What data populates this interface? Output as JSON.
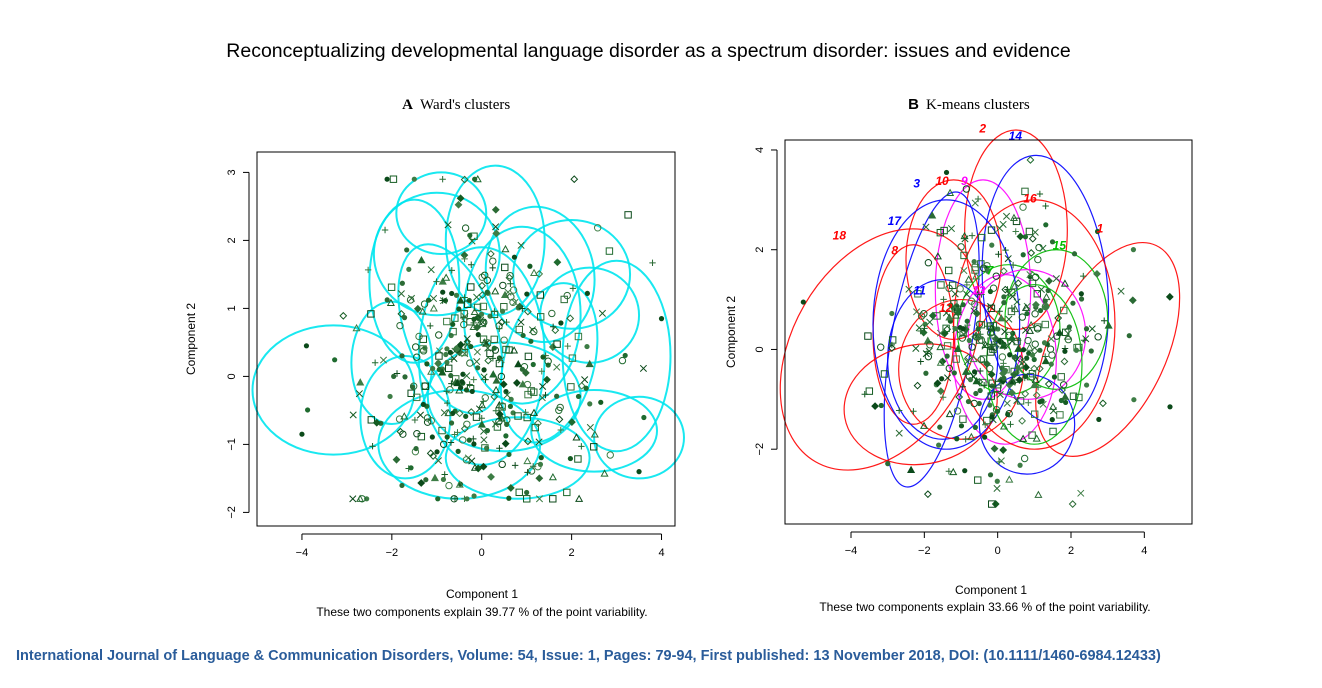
{
  "page": {
    "title": "Reconceptualizing developmental language disorder as a spectrum disorder: issues and evidence",
    "citation": "International Journal of Language & Communication Disorders, Volume: 54, Issue: 1, Pages: 79-94, First published: 13 November 2018, DOI: (10.1111/1460-6984.12433)",
    "citation_color": "#2a5c9a"
  },
  "chart_data": [
    {
      "type": "scatter",
      "panel_letter": "A",
      "title": "Ward's clusters",
      "xlabel": "Component 1",
      "ylabel": "Component 2",
      "caption": "These two components explain 39.77 % of the point variability.",
      "xlim": [
        -5,
        4.3
      ],
      "ylim": [
        -2.2,
        3.3
      ],
      "xticks": [
        -4,
        -2,
        0,
        2,
        4
      ],
      "yticks": [
        -2,
        -1,
        0,
        1,
        2,
        3
      ],
      "ellipse_color": "#00e5ee",
      "point_color": "#1f6b2f",
      "grid": false,
      "point_cloud": {
        "center": [
          0,
          0.2
        ],
        "spread": [
          1.3,
          1.1
        ],
        "count": 450
      },
      "named_points": [
        {
          "x": -3.9,
          "y": 0.45
        },
        {
          "x": -4.0,
          "y": -0.85
        },
        {
          "x": 4.0,
          "y": 0.85
        },
        {
          "x": 3.5,
          "y": -1.4
        }
      ],
      "ellipses": [
        {
          "cx": -3.3,
          "cy": -0.2,
          "rx": 1.8,
          "ry": 0.95,
          "angle": 0
        },
        {
          "cx": 0.3,
          "cy": 2.0,
          "rx": 1.1,
          "ry": 1.1,
          "angle": 0
        },
        {
          "cx": -1.0,
          "cy": 1.8,
          "rx": 1.4,
          "ry": 0.9,
          "angle": 0
        },
        {
          "cx": 1.3,
          "cy": 1.5,
          "rx": 1.2,
          "ry": 1.0,
          "angle": 10
        },
        {
          "cx": 3.0,
          "cy": 0.3,
          "rx": 1.2,
          "ry": 1.4,
          "angle": 0
        },
        {
          "cx": 3.5,
          "cy": -0.9,
          "rx": 1.0,
          "ry": 0.6,
          "angle": 0
        },
        {
          "cx": 2.5,
          "cy": -0.8,
          "rx": 1.4,
          "ry": 0.6,
          "angle": 0
        },
        {
          "cx": -0.5,
          "cy": -1.0,
          "rx": 1.8,
          "ry": 0.8,
          "angle": 0
        },
        {
          "cx": 0.8,
          "cy": -1.2,
          "rx": 1.6,
          "ry": 0.6,
          "angle": 0
        },
        {
          "cx": -1.7,
          "cy": -0.6,
          "rx": 1.0,
          "ry": 0.9,
          "angle": 0
        },
        {
          "cx": 0.0,
          "cy": 0.3,
          "rx": 1.4,
          "ry": 1.6,
          "angle": 0
        },
        {
          "cx": -0.7,
          "cy": 0.7,
          "rx": 1.0,
          "ry": 1.3,
          "angle": 20
        },
        {
          "cx": 1.5,
          "cy": 0.2,
          "rx": 1.0,
          "ry": 1.2,
          "angle": -15
        },
        {
          "cx": -1.5,
          "cy": 1.4,
          "rx": 1.0,
          "ry": 1.2,
          "angle": 0
        },
        {
          "cx": 2.0,
          "cy": 1.5,
          "rx": 1.3,
          "ry": 0.8,
          "angle": 0
        },
        {
          "cx": 0.5,
          "cy": -0.3,
          "rx": 1.7,
          "ry": 0.8,
          "angle": 0
        },
        {
          "cx": -0.9,
          "cy": 2.4,
          "rx": 1.0,
          "ry": 0.6,
          "angle": 0
        },
        {
          "cx": 2.4,
          "cy": 0.9,
          "rx": 1.1,
          "ry": 0.7,
          "angle": 0
        },
        {
          "cx": -2.0,
          "cy": 0.2,
          "rx": 0.9,
          "ry": 0.9,
          "angle": 0
        },
        {
          "cx": 0.9,
          "cy": 0.9,
          "rx": 1.3,
          "ry": 1.3,
          "angle": 0
        }
      ]
    },
    {
      "type": "scatter",
      "panel_letter": "B",
      "title": "K-means clusters",
      "xlabel": "Component 1",
      "ylabel": "Component 2",
      "caption": "These two components explain 33.66 % of the point variability.",
      "xlim": [
        -5.8,
        5.3
      ],
      "ylim": [
        -3.5,
        4.2
      ],
      "xticks": [
        -4,
        -2,
        0,
        2,
        4
      ],
      "yticks": [
        -2,
        0,
        2,
        4
      ],
      "point_color": "#1f6b2f",
      "grid": false,
      "point_cloud": {
        "center": [
          0,
          0.2
        ],
        "spread": [
          1.4,
          1.2
        ],
        "count": 450
      },
      "named_points": [
        {
          "x": -5.3,
          "y": 0.95
        },
        {
          "x": 4.7,
          "y": -1.15
        }
      ],
      "clusters": [
        {
          "label": "1",
          "color": "#ff0000",
          "label_x": 2.7,
          "label_y": 2.35,
          "cx": 3.0,
          "cy": 0.0,
          "rx": 1.6,
          "ry": 2.3,
          "angle": -25
        },
        {
          "label": "2",
          "color": "#ff0000",
          "label_x": -0.5,
          "label_y": 4.35,
          "cx": 0.5,
          "cy": 2.4,
          "rx": 1.4,
          "ry": 2.0,
          "angle": 0
        },
        {
          "label": "3",
          "color": "#0000ff",
          "label_x": -2.3,
          "label_y": 3.25,
          "cx": -1.8,
          "cy": 0.2,
          "rx": 1.1,
          "ry": 3.0,
          "angle": -10
        },
        {
          "label": "7",
          "color": "#00bb00",
          "label_x": -0.3,
          "label_y": 1.5,
          "cx": 0.3,
          "cy": 0.4,
          "rx": 1.4,
          "ry": 1.3,
          "angle": 0
        },
        {
          "label": "8",
          "color": "#ff0000",
          "label_x": -2.9,
          "label_y": 1.9,
          "cx": -2.3,
          "cy": 0.3,
          "rx": 1.1,
          "ry": 1.8,
          "angle": 0
        },
        {
          "label": "9",
          "color": "#ff00ff",
          "label_x": -1.0,
          "label_y": 3.3,
          "cx": -0.4,
          "cy": 1.2,
          "rx": 1.3,
          "ry": 2.2,
          "angle": 0
        },
        {
          "label": "10",
          "color": "#ff0000",
          "label_x": -1.7,
          "label_y": 3.3,
          "cx": -1.2,
          "cy": 1.8,
          "rx": 1.3,
          "ry": 1.6,
          "angle": 0
        },
        {
          "label": "11",
          "color": "#0000ff",
          "label_x": -2.3,
          "label_y": 1.1,
          "cx": -1.5,
          "cy": -0.2,
          "rx": 1.5,
          "ry": 1.6,
          "angle": 0
        },
        {
          "label": "12",
          "color": "#ff0000",
          "label_x": -1.6,
          "label_y": 0.75,
          "cx": -1.0,
          "cy": -0.4,
          "rx": 1.7,
          "ry": 1.4,
          "angle": 0
        },
        {
          "label": "13",
          "color": "#ff00ff",
          "label_x": -0.7,
          "label_y": 1.1,
          "cx": 0.2,
          "cy": -0.2,
          "rx": 1.4,
          "ry": 1.7,
          "angle": 0
        },
        {
          "label": "14",
          "color": "#0000ff",
          "label_x": 0.3,
          "label_y": 4.2,
          "cx": 1.3,
          "cy": 1.2,
          "rx": 1.7,
          "ry": 2.7,
          "angle": 5
        },
        {
          "label": "15",
          "color": "#00bb00",
          "label_x": 1.5,
          "label_y": 2.0,
          "cx": 1.6,
          "cy": 0.6,
          "rx": 1.4,
          "ry": 1.4,
          "angle": 0
        },
        {
          "label": "16",
          "color": "#ff0000",
          "label_x": 0.7,
          "label_y": 2.95,
          "cx": 1.0,
          "cy": 0.5,
          "rx": 2.2,
          "ry": 2.5,
          "angle": 0
        },
        {
          "label": "17",
          "color": "#0000ff",
          "label_x": -3.0,
          "label_y": 2.5,
          "cx": -1.4,
          "cy": 0.5,
          "rx": 2.0,
          "ry": 2.5,
          "angle": 0
        },
        {
          "label": "18",
          "color": "#ff0000",
          "label_x": -4.5,
          "label_y": 2.2,
          "cx": -3.2,
          "cy": 0.0,
          "rx": 2.4,
          "ry": 2.6,
          "angle": -30
        }
      ],
      "extra_ellipses": [
        {
          "color": "#ff0000",
          "cx": -2.1,
          "cy": -1.1,
          "rx": 2.1,
          "ry": 1.2,
          "angle": 10
        },
        {
          "color": "#0000ff",
          "cx": 0.8,
          "cy": -1.5,
          "rx": 1.3,
          "ry": 1.0,
          "angle": 0
        },
        {
          "color": "#ff00ff",
          "cx": 0.8,
          "cy": 0.3,
          "rx": 1.6,
          "ry": 1.3,
          "angle": 0
        },
        {
          "color": "#00bb00",
          "cx": 1.0,
          "cy": -0.3,
          "rx": 1.3,
          "ry": 1.6,
          "angle": 0
        }
      ]
    }
  ]
}
